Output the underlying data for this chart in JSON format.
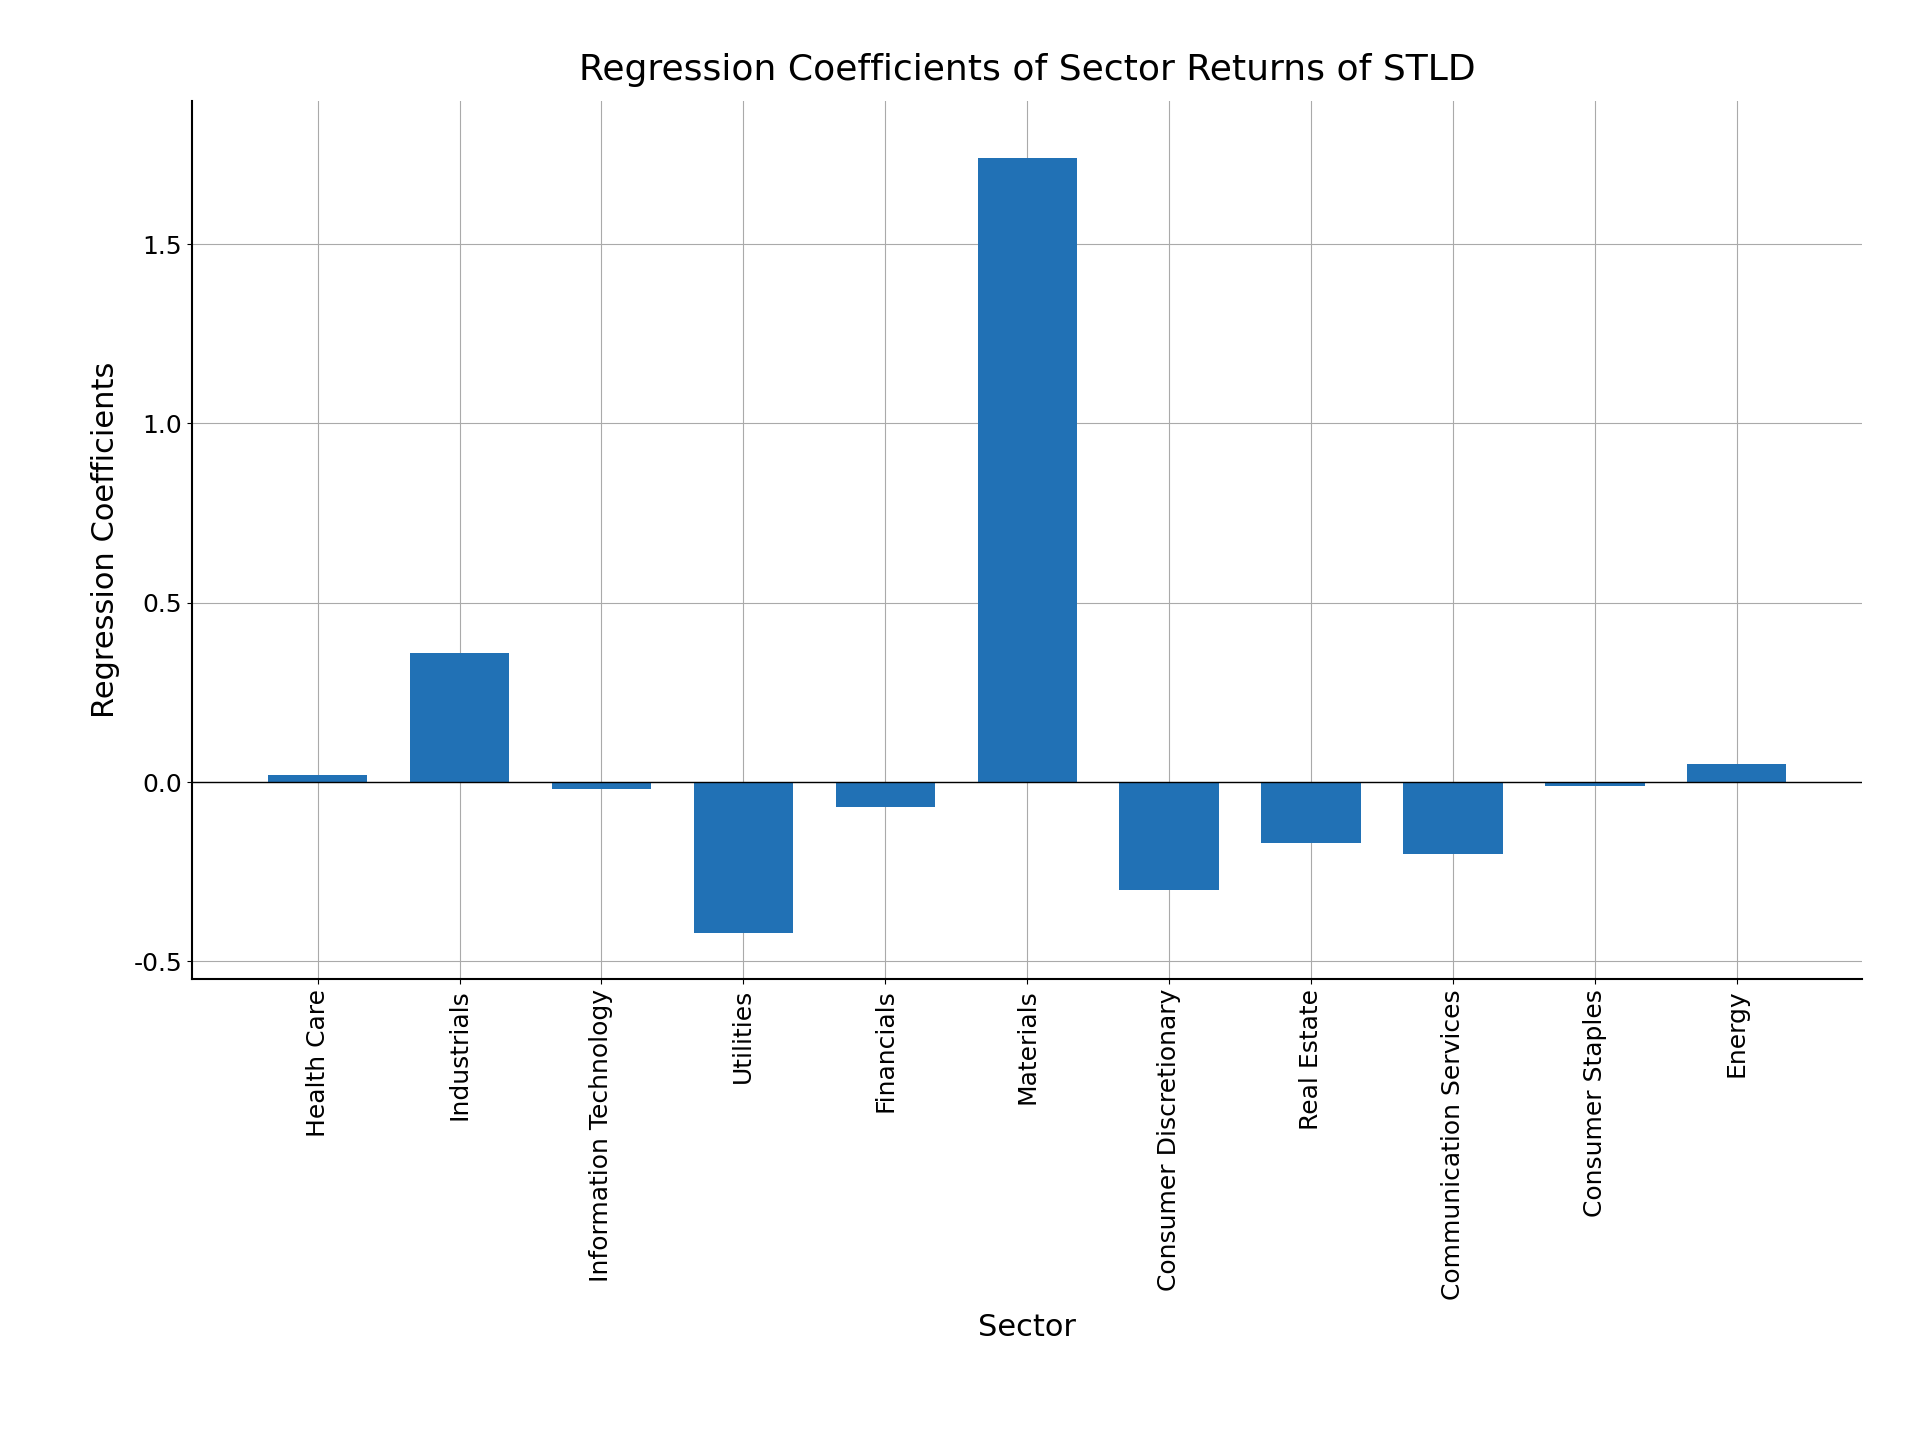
{
  "title": "Regression Coefficients of Sector Returns of STLD",
  "xlabel": "Sector",
  "ylabel": "Regression Coefficients",
  "categories": [
    "Health Care",
    "Industrials",
    "Information Technology",
    "Utilities",
    "Financials",
    "Materials",
    "Consumer Discretionary",
    "Real Estate",
    "Communication Services",
    "Consumer Staples",
    "Energy"
  ],
  "values": [
    0.02,
    0.36,
    -0.02,
    -0.42,
    -0.07,
    1.74,
    -0.3,
    -0.17,
    -0.2,
    -0.01,
    0.05
  ],
  "bar_color": "#2171b5",
  "ylim": [
    -0.55,
    1.9
  ],
  "yticks": [
    -0.5,
    0.0,
    0.5,
    1.0,
    1.5
  ],
  "grid_color": "#aaaaaa",
  "background_color": "#ffffff",
  "title_fontsize": 26,
  "label_fontsize": 22,
  "tick_fontsize": 18
}
